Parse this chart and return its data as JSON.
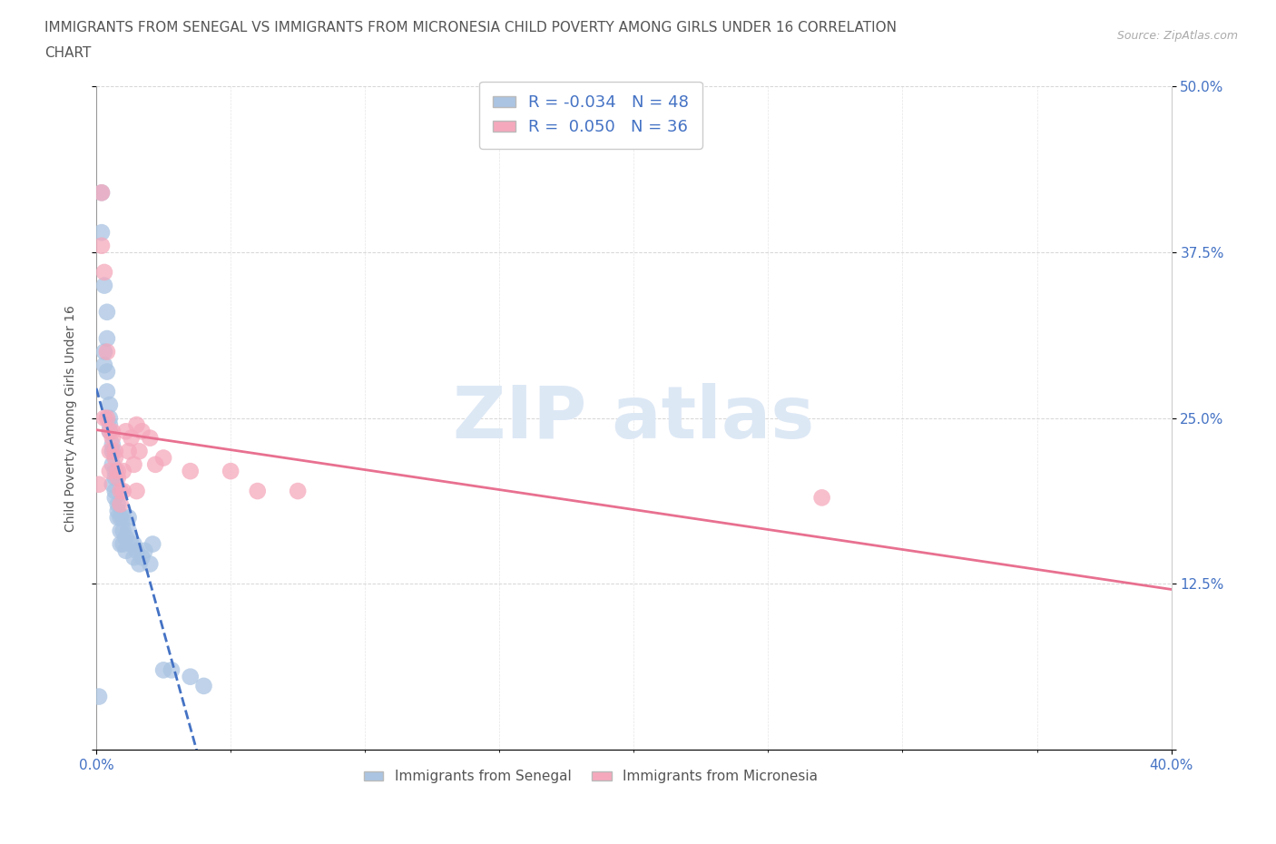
{
  "title_line1": "IMMIGRANTS FROM SENEGAL VS IMMIGRANTS FROM MICRONESIA CHILD POVERTY AMONG GIRLS UNDER 16 CORRELATION",
  "title_line2": "CHART",
  "source": "Source: ZipAtlas.com",
  "ylabel": "Child Poverty Among Girls Under 16",
  "xlim": [
    0,
    0.4
  ],
  "ylim": [
    0,
    0.5
  ],
  "xticks": [
    0.0,
    0.4
  ],
  "xtick_labels": [
    "0.0%",
    "40.0%"
  ],
  "yticks": [
    0.0,
    0.125,
    0.25,
    0.375,
    0.5
  ],
  "ytick_labels_right": [
    "",
    "12.5%",
    "25.0%",
    "37.5%",
    "50.0%"
  ],
  "senegal_color": "#aac4e2",
  "micronesia_color": "#f5a8bc",
  "senegal_line_color": "#4472c4",
  "micronesia_line_color": "#e87090",
  "R_senegal": -0.034,
  "N_senegal": 48,
  "R_micronesia": 0.05,
  "N_micronesia": 36,
  "title_fontsize": 11,
  "axis_label_fontsize": 10,
  "tick_fontsize": 11,
  "background_color": "#ffffff",
  "grid_color": "#cccccc",
  "senegal_x": [
    0.001,
    0.002,
    0.002,
    0.003,
    0.003,
    0.003,
    0.004,
    0.004,
    0.004,
    0.004,
    0.005,
    0.005,
    0.005,
    0.005,
    0.006,
    0.006,
    0.006,
    0.006,
    0.007,
    0.007,
    0.007,
    0.007,
    0.008,
    0.008,
    0.008,
    0.009,
    0.009,
    0.009,
    0.01,
    0.01,
    0.01,
    0.011,
    0.011,
    0.012,
    0.012,
    0.013,
    0.014,
    0.014,
    0.015,
    0.016,
    0.017,
    0.018,
    0.02,
    0.021,
    0.025,
    0.028,
    0.035,
    0.04
  ],
  "senegal_y": [
    0.04,
    0.39,
    0.42,
    0.35,
    0.3,
    0.29,
    0.33,
    0.31,
    0.285,
    0.27,
    0.26,
    0.25,
    0.245,
    0.24,
    0.23,
    0.225,
    0.215,
    0.2,
    0.21,
    0.205,
    0.195,
    0.19,
    0.185,
    0.18,
    0.175,
    0.175,
    0.165,
    0.155,
    0.175,
    0.165,
    0.155,
    0.16,
    0.15,
    0.175,
    0.165,
    0.155,
    0.155,
    0.145,
    0.15,
    0.14,
    0.145,
    0.15,
    0.14,
    0.155,
    0.06,
    0.06,
    0.055,
    0.048
  ],
  "micronesia_x": [
    0.001,
    0.002,
    0.002,
    0.003,
    0.003,
    0.004,
    0.004,
    0.005,
    0.005,
    0.005,
    0.006,
    0.006,
    0.007,
    0.007,
    0.008,
    0.008,
    0.009,
    0.009,
    0.01,
    0.01,
    0.011,
    0.012,
    0.013,
    0.014,
    0.015,
    0.015,
    0.016,
    0.017,
    0.02,
    0.022,
    0.025,
    0.035,
    0.05,
    0.06,
    0.075,
    0.27
  ],
  "micronesia_y": [
    0.2,
    0.42,
    0.38,
    0.36,
    0.25,
    0.3,
    0.25,
    0.24,
    0.225,
    0.21,
    0.24,
    0.235,
    0.225,
    0.22,
    0.21,
    0.205,
    0.195,
    0.185,
    0.21,
    0.195,
    0.24,
    0.225,
    0.235,
    0.215,
    0.195,
    0.245,
    0.225,
    0.24,
    0.235,
    0.215,
    0.22,
    0.21,
    0.21,
    0.195,
    0.195,
    0.19
  ]
}
